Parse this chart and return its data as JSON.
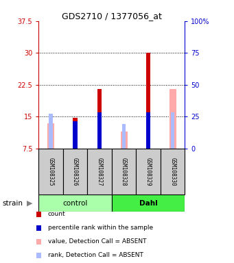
{
  "title": "GDS2710 / 1377056_at",
  "samples": [
    "GSM108325",
    "GSM108326",
    "GSM108327",
    "GSM108328",
    "GSM108329",
    "GSM108330"
  ],
  "groups": [
    "control",
    "control",
    "control",
    "Dahl",
    "Dahl",
    "Dahl"
  ],
  "group_labels": [
    "control",
    "Dahl"
  ],
  "group_colors": [
    "#aaffaa",
    "#44ee44"
  ],
  "ylim_left": [
    7.5,
    37.5
  ],
  "ylim_right": [
    0,
    100
  ],
  "yticks_left": [
    7.5,
    15.0,
    22.5,
    30.0,
    37.5
  ],
  "yticks_right": [
    0,
    25,
    50,
    75,
    100
  ],
  "ytick_labels_left": [
    "7.5",
    "15",
    "22.5",
    "30",
    "37.5"
  ],
  "ytick_labels_right": [
    "0",
    "25",
    "50",
    "75",
    "100%"
  ],
  "red_bars": [
    null,
    14.7,
    21.5,
    null,
    30.0,
    null
  ],
  "blue_bars": [
    null,
    14.0,
    16.0,
    null,
    16.0,
    null
  ],
  "pink_bars": [
    13.5,
    null,
    null,
    11.5,
    null,
    21.5
  ],
  "lightblue_bars": [
    15.7,
    null,
    null,
    13.3,
    null,
    16.0
  ],
  "red_color": "#cc0000",
  "blue_color": "#0000cc",
  "pink_color": "#ffaaaa",
  "lightblue_color": "#aabbff",
  "strain_label": "strain",
  "legend_items": [
    {
      "color": "#cc0000",
      "label": "count"
    },
    {
      "color": "#0000cc",
      "label": "percentile rank within the sample"
    },
    {
      "color": "#ffaaaa",
      "label": "value, Detection Call = ABSENT"
    },
    {
      "color": "#aabbff",
      "label": "rank, Detection Call = ABSENT"
    }
  ],
  "left_axis_color": "#cc0000",
  "right_axis_color": "#0000cc",
  "sample_box_color": "#cccccc"
}
